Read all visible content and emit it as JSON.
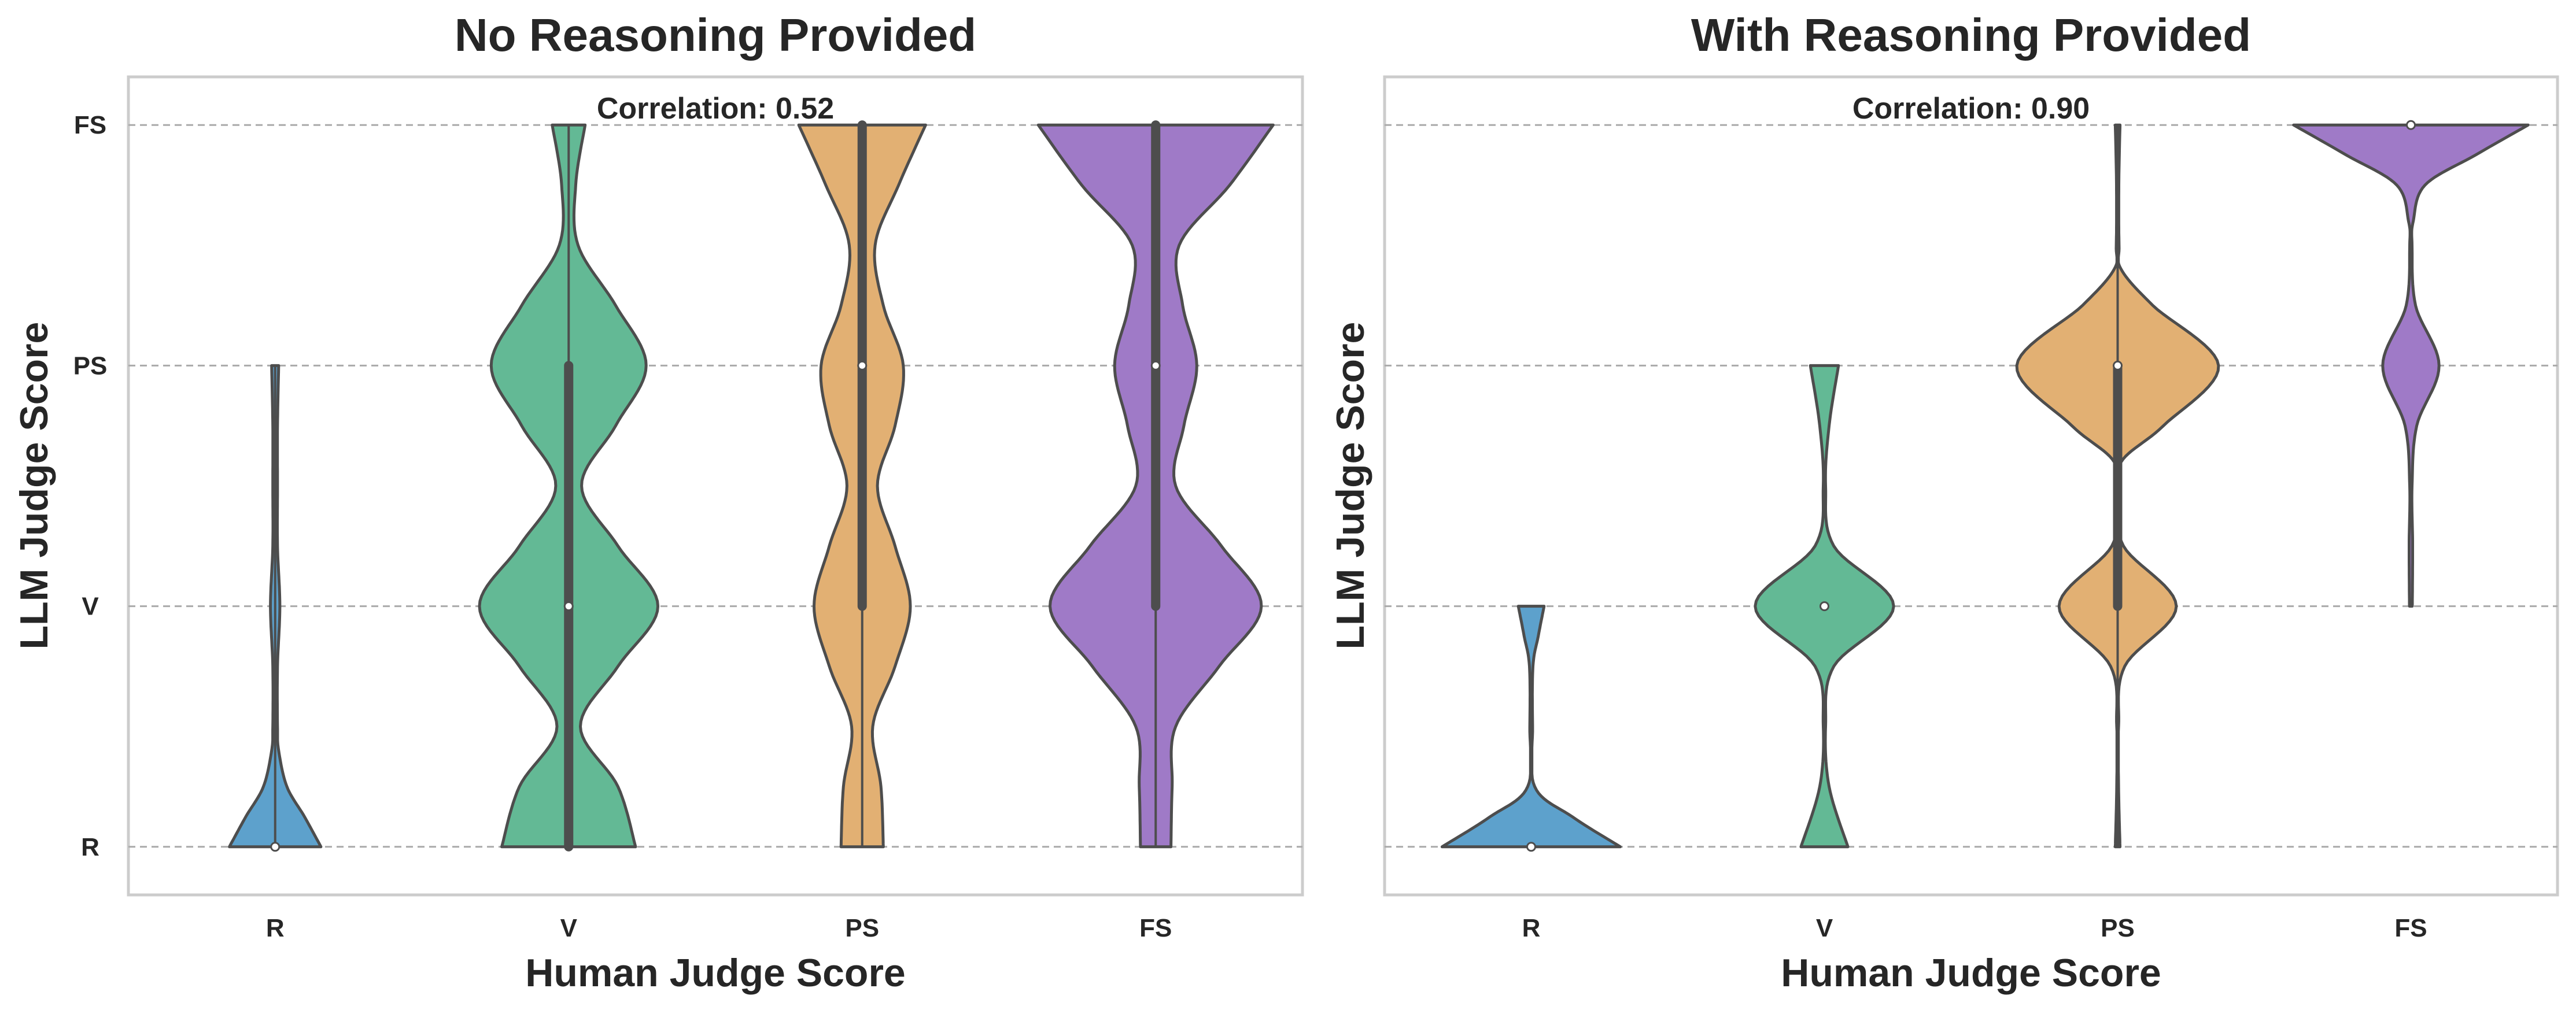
{
  "chart_data": [
    {
      "type": "violin",
      "title": "No Reasoning Provided",
      "annotation": "Correlation: 0.52",
      "xlabel": "Human Judge Score",
      "ylabel": "LLM Judge Score",
      "categories": [
        "R",
        "V",
        "PS",
        "FS"
      ],
      "yticks": [
        {
          "value": 0,
          "label": "R"
        },
        {
          "value": 1,
          "label": "V"
        },
        {
          "value": 2,
          "label": "PS"
        },
        {
          "value": 3,
          "label": "FS"
        }
      ],
      "show_ytick_labels": true,
      "ylim": [
        -0.2,
        3.2
      ],
      "grid": "horizontal dashed",
      "colors": [
        "#5da1cc",
        "#63b995",
        "#e2b073",
        "#9f7ac7"
      ],
      "violins": [
        {
          "category": "R",
          "density": [
            [
              0,
              0.39
            ],
            [
              0.125,
              0.25
            ],
            [
              0.25,
              0.1
            ],
            [
              0.4,
              0.03
            ],
            [
              0.5,
              0.02
            ],
            [
              0.75,
              0.02
            ],
            [
              1,
              0.04
            ],
            [
              1.25,
              0.02
            ],
            [
              1.5,
              0.02
            ],
            [
              1.75,
              0.02
            ],
            [
              2,
              0.03
            ]
          ],
          "box": {
            "whisker_low": 0,
            "q1": 0,
            "median": 0,
            "q3": 0,
            "whisker_high": 2
          }
        },
        {
          "category": "V",
          "density": [
            [
              0,
              0.57
            ],
            [
              0.25,
              0.42
            ],
            [
              0.5,
              0.1
            ],
            [
              0.75,
              0.42
            ],
            [
              1,
              0.76
            ],
            [
              1.25,
              0.42
            ],
            [
              1.5,
              0.11
            ],
            [
              1.75,
              0.4
            ],
            [
              2,
              0.66
            ],
            [
              2.25,
              0.4
            ],
            [
              2.5,
              0.08
            ],
            [
              2.75,
              0.06
            ],
            [
              3,
              0.14
            ]
          ],
          "box": {
            "whisker_low": 0,
            "q1": 0,
            "median": 1,
            "q3": 2,
            "whisker_high": 3
          }
        },
        {
          "category": "PS",
          "density": [
            [
              0,
              0.18
            ],
            [
              0.25,
              0.16
            ],
            [
              0.5,
              0.09
            ],
            [
              0.75,
              0.28
            ],
            [
              1,
              0.41
            ],
            [
              1.25,
              0.28
            ],
            [
              1.5,
              0.13
            ],
            [
              1.75,
              0.28
            ],
            [
              2,
              0.35
            ],
            [
              2.25,
              0.18
            ],
            [
              2.5,
              0.11
            ],
            [
              2.75,
              0.31
            ],
            [
              3,
              0.54
            ]
          ],
          "box": {
            "whisker_low": 0,
            "q1": 1,
            "median": 2,
            "q3": 3,
            "whisker_high": 3
          }
        },
        {
          "category": "FS",
          "density": [
            [
              0,
              0.13
            ],
            [
              0.25,
              0.14
            ],
            [
              0.5,
              0.17
            ],
            [
              0.75,
              0.54
            ],
            [
              1,
              0.9
            ],
            [
              1.25,
              0.56
            ],
            [
              1.5,
              0.17
            ],
            [
              1.75,
              0.24
            ],
            [
              2,
              0.35
            ],
            [
              2.25,
              0.23
            ],
            [
              2.5,
              0.2
            ],
            [
              2.75,
              0.63
            ],
            [
              3,
              1.0
            ]
          ],
          "box": {
            "whisker_low": 0,
            "q1": 1,
            "median": 2,
            "q3": 3,
            "whisker_high": 3
          }
        }
      ]
    },
    {
      "type": "violin",
      "title": "With Reasoning Provided",
      "annotation": "Correlation: 0.90",
      "xlabel": "Human Judge Score",
      "ylabel": "LLM Judge Score",
      "categories": [
        "R",
        "V",
        "PS",
        "FS"
      ],
      "yticks": [
        {
          "value": 0,
          "label": "R"
        },
        {
          "value": 1,
          "label": "V"
        },
        {
          "value": 2,
          "label": "PS"
        },
        {
          "value": 3,
          "label": "FS"
        }
      ],
      "show_ytick_labels": false,
      "ylim": [
        -0.2,
        3.2
      ],
      "grid": "horizontal dashed",
      "colors": [
        "#5da1cc",
        "#63b995",
        "#e2b073",
        "#9f7ac7"
      ],
      "violins": [
        {
          "category": "R",
          "density": [
            [
              0,
              0.76
            ],
            [
              0.125,
              0.35
            ],
            [
              0.25,
              0.03
            ],
            [
              0.5,
              0.012
            ],
            [
              0.75,
              0.015
            ],
            [
              0.875,
              0.06
            ],
            [
              1,
              0.11
            ]
          ],
          "box": {
            "whisker_low": 0,
            "q1": 0,
            "median": 0,
            "q3": 0,
            "whisker_high": 0
          }
        },
        {
          "category": "V",
          "density": [
            [
              0,
              0.2
            ],
            [
              0.25,
              0.04
            ],
            [
              0.5,
              0.01
            ],
            [
              0.75,
              0.08
            ],
            [
              1,
              0.59
            ],
            [
              1.25,
              0.08
            ],
            [
              1.5,
              0.01
            ],
            [
              1.75,
              0.04
            ],
            [
              2,
              0.12
            ]
          ],
          "box": {
            "whisker_low": 1,
            "q1": 1,
            "median": 1,
            "q3": 1,
            "whisker_high": 1
          }
        },
        {
          "category": "PS",
          "density": [
            [
              0,
              0.02
            ],
            [
              0.25,
              0.008
            ],
            [
              0.5,
              0.008
            ],
            [
              0.75,
              0.06
            ],
            [
              1,
              0.5
            ],
            [
              1.25,
              0.05
            ],
            [
              1.45,
              0.01
            ],
            [
              1.6,
              0.03
            ],
            [
              1.75,
              0.39
            ],
            [
              2,
              0.86
            ],
            [
              2.25,
              0.3
            ],
            [
              2.4,
              0.03
            ],
            [
              2.5,
              0.012
            ],
            [
              2.75,
              0.01
            ],
            [
              3,
              0.02
            ]
          ],
          "box": {
            "whisker_low": 0,
            "q1": 1,
            "median": 2,
            "q3": 2,
            "whisker_high": 3
          }
        },
        {
          "category": "FS",
          "density": [
            [
              1,
              0.012
            ],
            [
              1.25,
              0.015
            ],
            [
              1.5,
              0.01
            ],
            [
              1.75,
              0.05
            ],
            [
              2,
              0.24
            ],
            [
              2.25,
              0.04
            ],
            [
              2.5,
              0.01
            ],
            [
              2.6,
              0.02
            ],
            [
              2.75,
              0.12
            ],
            [
              2.875,
              0.55
            ],
            [
              3,
              1.0
            ]
          ],
          "box": {
            "whisker_low": 3,
            "q1": 3,
            "median": 3,
            "q3": 3,
            "whisker_high": 3
          }
        }
      ]
    }
  ]
}
